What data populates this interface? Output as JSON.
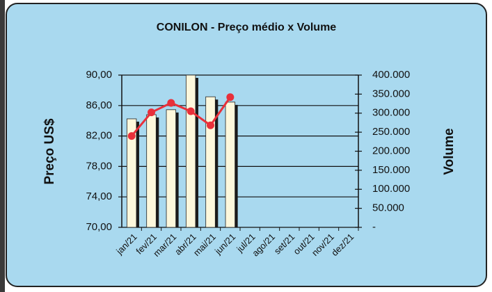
{
  "chart_data": {
    "type": "bar",
    "title": "CONILON - Preço médio x Volume",
    "y_label": "Preço US$",
    "y2_label": "Volume",
    "categories": [
      "jan/21",
      "fev/21",
      "mar/21",
      "abr/21",
      "mai/21",
      "jun/21",
      "jul/21",
      "ago/21",
      "set/21",
      "out/21",
      "nov/21",
      "dez/21"
    ],
    "series": [
      {
        "type": "bar",
        "axis": "y2",
        "color": "#fdf8dc",
        "values": [
          285000,
          296000,
          309000,
          400000,
          343000,
          329000,
          null,
          null,
          null,
          null,
          null,
          null
        ]
      },
      {
        "type": "line",
        "color": "#e8303a",
        "values": [
          82.0,
          85.1,
          86.35,
          85.25,
          83.4,
          87.1,
          null,
          null,
          null,
          null,
          null,
          null
        ]
      }
    ],
    "ylim": [
      70,
      90
    ],
    "yticks": [
      {
        "value": 70,
        "label": "70,00"
      },
      {
        "value": 74,
        "label": "74,00"
      },
      {
        "value": 78,
        "label": "78,00"
      },
      {
        "value": 82,
        "label": "82,00"
      },
      {
        "value": 86,
        "label": "86,00"
      },
      {
        "value": 90,
        "label": "90,00"
      }
    ],
    "y2lim": [
      0,
      400000
    ],
    "y2ticks": [
      {
        "value": 0,
        "label": "-"
      },
      {
        "value": 50000,
        "label": "50.000"
      },
      {
        "value": 100000,
        "label": "100.000"
      },
      {
        "value": 150000,
        "label": "150.000"
      },
      {
        "value": 200000,
        "label": "200.000"
      },
      {
        "value": 250000,
        "label": "250.000"
      },
      {
        "value": 300000,
        "label": "300.000"
      },
      {
        "value": 350000,
        "label": "350.000"
      },
      {
        "value": 400000,
        "label": "400.000"
      }
    ],
    "grid": true
  }
}
